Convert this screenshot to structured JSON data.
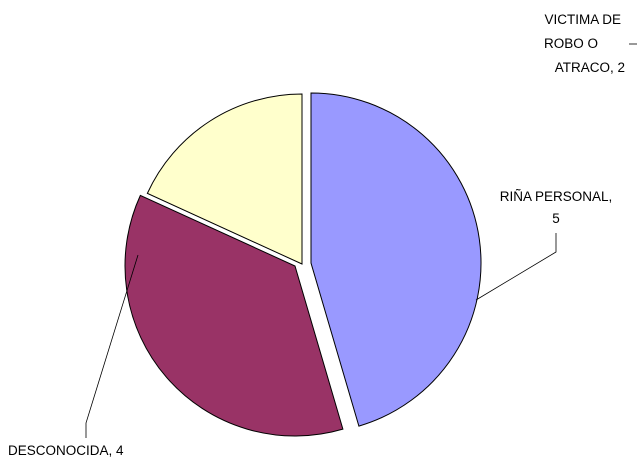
{
  "chart_data": {
    "type": "pie",
    "title": "",
    "slices": [
      {
        "label": "RIÑA PERSONAL,",
        "value": 5,
        "display_value": "5",
        "color": "#9999ff",
        "lines": [
          "RIÑA PERSONAL,",
          "5"
        ]
      },
      {
        "label": "DESCONOCIDA,",
        "value": 4,
        "display_value": "4",
        "color": "#993366",
        "lines": [
          "DESCONOCIDA, 4"
        ]
      },
      {
        "label": "VICTIMA DE ROBO O ATRACO,",
        "value": 2,
        "display_value": "2",
        "color": "#ffffcc",
        "lines": [
          "VICTIMA DE",
          "ROBO O",
          "ATRACO, 2"
        ]
      }
    ],
    "legend": "none",
    "data_labels": "outside with leader lines"
  }
}
